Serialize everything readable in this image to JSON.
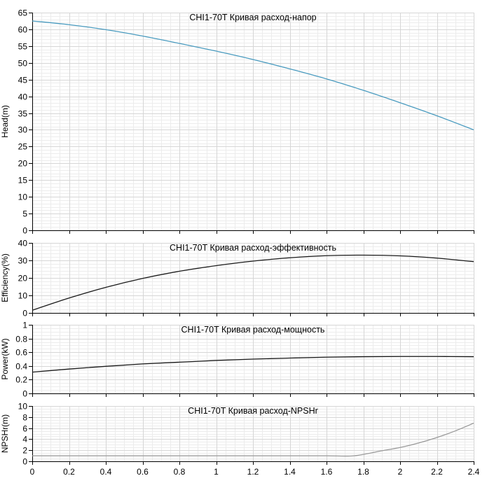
{
  "chart_data": [
    {
      "type": "line",
      "title": "CHI1-70T Кривая расход-напор",
      "xlabel": "",
      "ylabel": "Head(m)",
      "xlim": [
        0,
        2.4
      ],
      "ylim": [
        0,
        65
      ],
      "yticks": [
        0,
        5,
        10,
        15,
        20,
        25,
        30,
        35,
        40,
        45,
        50,
        55,
        60,
        65
      ],
      "grid": true,
      "series": [
        {
          "color": "#4a9bbf",
          "x": [
            0,
            0.2,
            0.4,
            0.6,
            0.8,
            1.0,
            1.2,
            1.4,
            1.6,
            1.8,
            2.0,
            2.2,
            2.4
          ],
          "y": [
            62.5,
            61.4,
            59.9,
            58.0,
            55.8,
            53.5,
            51.0,
            48.2,
            45.2,
            41.8,
            38.1,
            34.2,
            30.0
          ]
        }
      ]
    },
    {
      "type": "line",
      "title": "CHI1-70T Кривая расход-эффективность",
      "xlabel": "",
      "ylabel": "Efficiency(%)",
      "xlim": [
        0,
        2.4
      ],
      "ylim": [
        0,
        40
      ],
      "yticks": [
        0,
        10,
        20,
        30,
        40
      ],
      "grid": true,
      "series": [
        {
          "color": "#1a1a1a",
          "x": [
            0,
            0.2,
            0.4,
            0.6,
            0.8,
            1.0,
            1.2,
            1.4,
            1.6,
            1.8,
            2.0,
            2.2,
            2.4
          ],
          "y": [
            1.5,
            8.5,
            14.6,
            19.7,
            23.8,
            27.0,
            29.6,
            31.5,
            32.7,
            33.0,
            32.6,
            31.3,
            29.3
          ]
        }
      ]
    },
    {
      "type": "line",
      "title": "CHI1-70T Кривая расход-мощность",
      "xlabel": "",
      "ylabel": "Power(kW)",
      "xlim": [
        0,
        2.4
      ],
      "ylim": [
        0,
        1
      ],
      "yticks": [
        0,
        0.2,
        0.4,
        0.6,
        0.8,
        1
      ],
      "grid": true,
      "series": [
        {
          "color": "#1a1a1a",
          "x": [
            0,
            0.2,
            0.4,
            0.6,
            0.8,
            1.0,
            1.2,
            1.4,
            1.6,
            1.8,
            2.0,
            2.2,
            2.4
          ],
          "y": [
            0.31,
            0.355,
            0.395,
            0.43,
            0.455,
            0.48,
            0.5,
            0.515,
            0.528,
            0.535,
            0.538,
            0.538,
            0.535
          ]
        }
      ]
    },
    {
      "type": "line",
      "title": "CHI1-70T Кривая расход-NPSHr",
      "xlabel": "",
      "ylabel": "NPSHr(m)",
      "xlim": [
        0,
        2.4
      ],
      "ylim": [
        0,
        10
      ],
      "yticks": [
        0,
        2,
        4,
        6,
        8,
        10
      ],
      "xticks": [
        0,
        0.2,
        0.4,
        0.6,
        0.8,
        1,
        1.2,
        1.4,
        1.6,
        1.8,
        2,
        2.2,
        2.4
      ],
      "grid": true,
      "series": [
        {
          "color": "#999999",
          "x": [
            0,
            0.2,
            0.4,
            0.6,
            0.8,
            1.0,
            1.2,
            1.4,
            1.6,
            1.75,
            1.9,
            2.0,
            2.1,
            2.2,
            2.3,
            2.4
          ],
          "y": [
            1.0,
            1.0,
            1.0,
            1.0,
            1.0,
            1.0,
            1.0,
            1.0,
            1.0,
            1.0,
            1.9,
            2.5,
            3.3,
            4.3,
            5.5,
            6.9
          ]
        }
      ]
    }
  ]
}
